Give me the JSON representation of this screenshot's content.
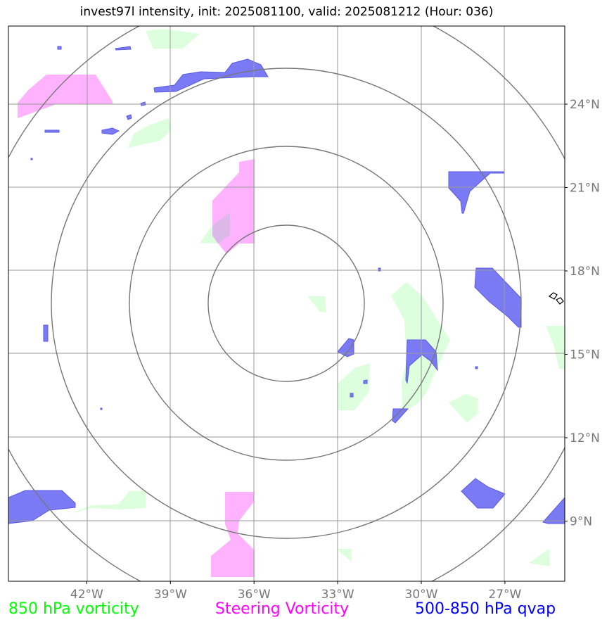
{
  "title": "invest97l intensity, init: 2025081100, valid: 2025081212 (Hour: 036)",
  "lon_ticks": [
    {
      "lon": -42,
      "label": "42°W"
    },
    {
      "lon": -39,
      "label": "39°W"
    },
    {
      "lon": -36,
      "label": "36°W"
    },
    {
      "lon": -33,
      "label": "33°W"
    },
    {
      "lon": -30,
      "label": "30°W"
    },
    {
      "lon": -27,
      "label": "27°W"
    }
  ],
  "lat_ticks": [
    {
      "lat": 24,
      "label": "24°N"
    },
    {
      "lat": 21,
      "label": "21°N"
    },
    {
      "lat": 18,
      "label": "18°N"
    },
    {
      "lat": 15,
      "label": "15°N"
    },
    {
      "lat": 12,
      "label": "12°N"
    },
    {
      "lat": 9,
      "label": "9°N"
    }
  ],
  "legend": [
    {
      "label": "850 hPa vorticity",
      "color": "#00ff00"
    },
    {
      "label": "Steering Vorticity",
      "color": "#ff00ff"
    },
    {
      "label": "500-850 hPa qvap",
      "color": "#0000ff"
    }
  ],
  "colors": {
    "vorticity_850": "#ddffdd",
    "steering_vorticity": "#ffb3ff",
    "qvap": "#7a7af5",
    "qvap_edge": "#4b4bd8",
    "grid": "#999999",
    "range_rings": "#777777",
    "tick_label": "#777777"
  },
  "range_rings_count": 4
}
